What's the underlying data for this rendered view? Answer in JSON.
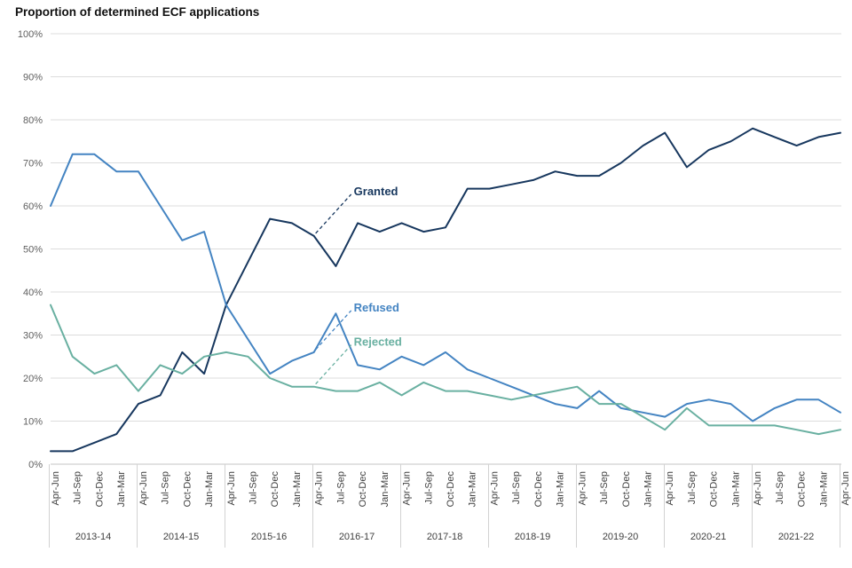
{
  "page": {
    "title": "Proportion of determined ECF applications"
  },
  "chart_data": {
    "type": "line",
    "title": "Proportion of determined ECF applications",
    "x_categories": [
      "Apr-Jun",
      "Jul-Sep",
      "Oct-Dec",
      "Jan-Mar",
      "Apr-Jun",
      "Jul-Sep",
      "Oct-Dec",
      "Jan-Mar",
      "Apr-Jun",
      "Jul-Sep",
      "Oct-Dec",
      "Jan-Mar",
      "Apr-Jun",
      "Jul-Sep",
      "Oct-Dec",
      "Jan-Mar",
      "Apr-Jun",
      "Jul-Sep",
      "Oct-Dec",
      "Jan-Mar",
      "Apr-Jun",
      "Jul-Sep",
      "Oct-Dec",
      "Jan-Mar",
      "Apr-Jun",
      "Jul-Sep",
      "Oct-Dec",
      "Jan-Mar",
      "Apr-Jun",
      "Jul-Sep",
      "Oct-Dec",
      "Jan-Mar",
      "Apr-Jun",
      "Jul-Sep",
      "Oct-Dec",
      "Jan-Mar",
      "Apr-Jun"
    ],
    "year_groups": [
      "2013-14",
      "2014-15",
      "2015-16",
      "2016-17",
      "2017-18",
      "2018-19",
      "2019-20",
      "2020-21",
      "2021-22"
    ],
    "y_ticks": [
      "0%",
      "10%",
      "20%",
      "30%",
      "40%",
      "50%",
      "60%",
      "70%",
      "80%",
      "90%",
      "100%"
    ],
    "ylim": [
      0,
      100
    ],
    "grid": "horizontal-only",
    "legend": "inline-series-labels-with-dashed-leaders",
    "series": [
      {
        "name": "Granted",
        "color": "#17375e",
        "annotation_point": 12,
        "values": [
          3,
          3,
          5,
          7,
          14,
          16,
          26,
          21,
          37,
          47,
          57,
          56,
          53,
          46,
          56,
          54,
          56,
          54,
          55,
          64,
          64,
          65,
          66,
          68,
          67,
          67,
          70,
          74,
          77,
          69,
          73,
          75,
          78,
          76,
          74,
          76,
          77
        ]
      },
      {
        "name": "Refused",
        "color": "#4484c2",
        "annotation_point": 12,
        "values": [
          60,
          72,
          72,
          68,
          68,
          60,
          52,
          54,
          37,
          29,
          21,
          24,
          26,
          35,
          23,
          22,
          25,
          23,
          26,
          22,
          20,
          18,
          16,
          14,
          13,
          17,
          13,
          12,
          11,
          14,
          15,
          14,
          10,
          13,
          15,
          15,
          12
        ]
      },
      {
        "name": "Rejected",
        "color": "#69b0a1",
        "annotation_point": 12,
        "values": [
          37,
          25,
          21,
          23,
          17,
          23,
          21,
          25,
          26,
          25,
          20,
          18,
          18,
          17,
          17,
          19,
          16,
          19,
          17,
          17,
          16,
          15,
          16,
          17,
          18,
          14,
          14,
          11,
          8,
          13,
          9,
          9,
          9,
          9,
          8,
          7,
          8
        ]
      }
    ]
  }
}
